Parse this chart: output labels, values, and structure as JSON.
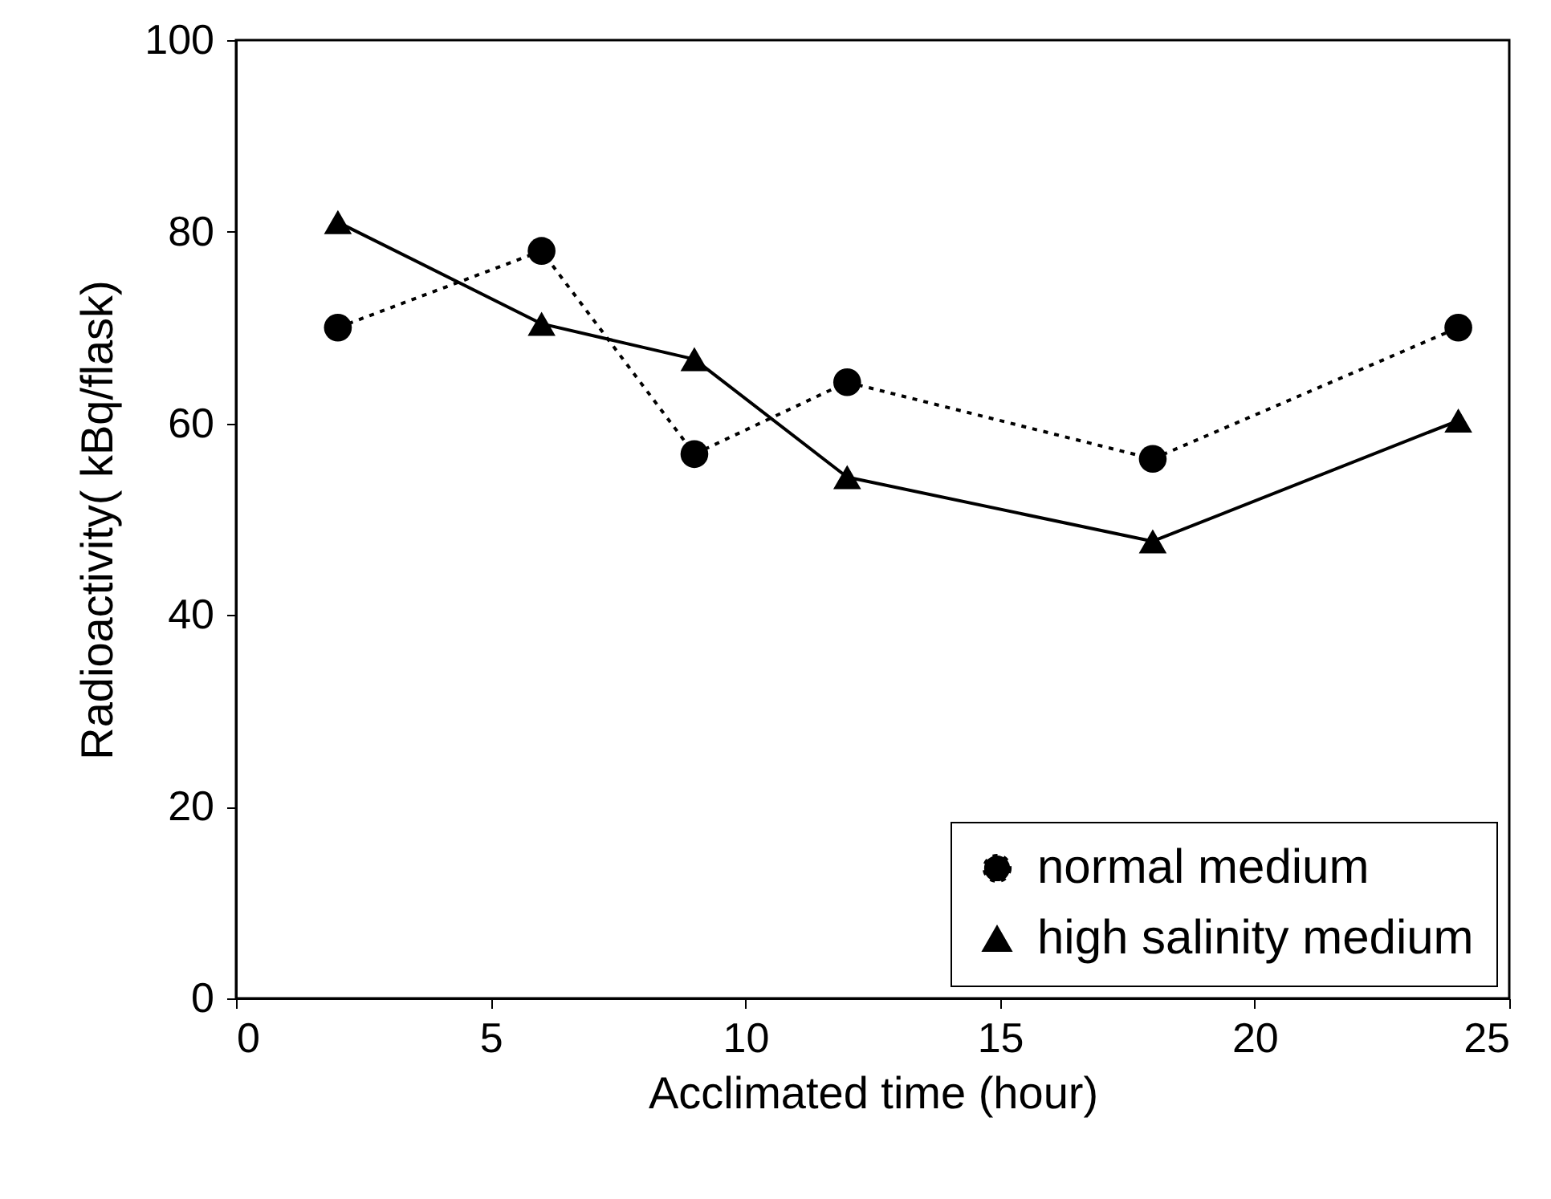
{
  "chart_data": {
    "type": "line",
    "xlabel": "Acclimated time (hour)",
    "ylabel": "Radioactivity( kBq/flask)",
    "xlim": [
      0,
      25
    ],
    "xticks": [
      0,
      5,
      10,
      15,
      20,
      25
    ],
    "ylim": [
      0,
      100
    ],
    "yticks": [
      0,
      20,
      40,
      60,
      80,
      100
    ],
    "legend": "bottom right",
    "series": [
      {
        "name": "normal medium",
        "color": "#000000",
        "marker": "circle",
        "line_style": "dotted",
        "x": [
          2,
          6,
          9,
          12,
          18,
          24
        ],
        "values": [
          70,
          78,
          56.8,
          64.3,
          56.3,
          70
        ]
      },
      {
        "name": "high salinity medium",
        "color": "#000000",
        "marker": "triangle",
        "line_style": "solid",
        "x": [
          2,
          6,
          9,
          12,
          18,
          24
        ],
        "values": [
          81,
          70.4,
          66.7,
          54.4,
          47.7,
          60.3
        ]
      }
    ]
  }
}
